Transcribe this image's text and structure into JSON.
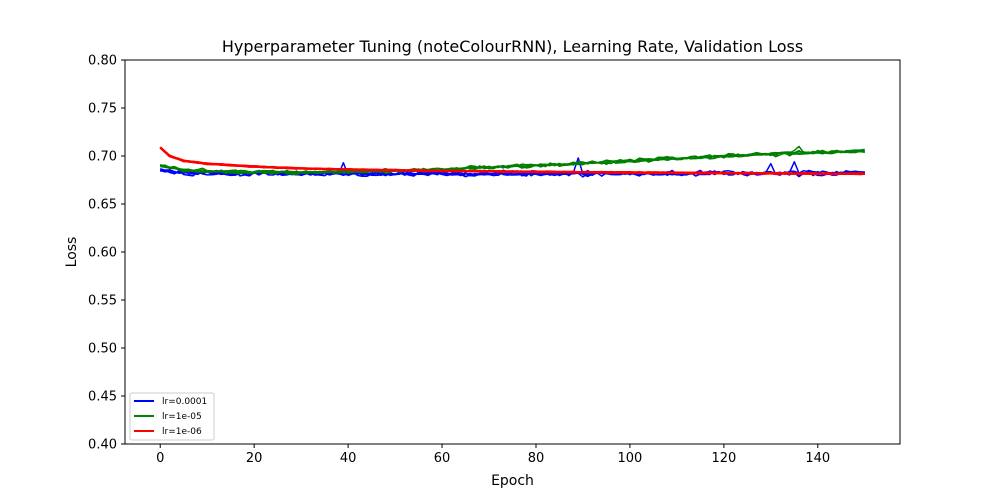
{
  "chart_data": {
    "type": "line",
    "title": "Hyperparameter Tuning (noteColourRNN), Learning Rate, Validation Loss",
    "xlabel": "Epoch",
    "ylabel": "Loss",
    "xlim": [
      -7.5,
      157.5
    ],
    "ylim": [
      0.4,
      0.8
    ],
    "xticks": [
      0,
      20,
      40,
      60,
      80,
      100,
      120,
      140
    ],
    "xtick_labels": [
      "0",
      "20",
      "40",
      "60",
      "80",
      "100",
      "120",
      "140"
    ],
    "yticks": [
      0.4,
      0.45,
      0.5,
      0.55,
      0.6,
      0.65,
      0.7,
      0.75,
      0.8
    ],
    "ytick_labels": [
      "0.40",
      "0.45",
      "0.50",
      "0.55",
      "0.60",
      "0.65",
      "0.70",
      "0.75",
      "0.80"
    ],
    "grid": false,
    "legend_position": "lower-left",
    "runs_per_series": 5,
    "epochs": 150,
    "series": [
      {
        "name": "lr=0.0001",
        "color": "#0000ff",
        "trend": [
          [
            0,
            0.684
          ],
          [
            5,
            0.682
          ],
          [
            20,
            0.6815
          ],
          [
            60,
            0.681
          ],
          [
            100,
            0.6815
          ],
          [
            150,
            0.682
          ]
        ],
        "noise": 0.0025,
        "spikes": [
          [
            39,
            0.693
          ],
          [
            89,
            0.698
          ],
          [
            135,
            0.694
          ],
          [
            130,
            0.692
          ]
        ]
      },
      {
        "name": "lr=1e-05",
        "color": "#008000",
        "trend": [
          [
            0,
            0.69
          ],
          [
            5,
            0.685
          ],
          [
            15,
            0.6835
          ],
          [
            30,
            0.683
          ],
          [
            45,
            0.684
          ],
          [
            60,
            0.686
          ],
          [
            75,
            0.689
          ],
          [
            90,
            0.692
          ],
          [
            105,
            0.696
          ],
          [
            120,
            0.7
          ],
          [
            135,
            0.703
          ],
          [
            150,
            0.705
          ]
        ],
        "noise": 0.0018,
        "spikes": [
          [
            136,
            0.71
          ]
        ]
      },
      {
        "name": "lr=1e-06",
        "color": "#ff0000",
        "trend": [
          [
            0,
            0.709
          ],
          [
            2,
            0.7
          ],
          [
            5,
            0.695
          ],
          [
            10,
            0.692
          ],
          [
            20,
            0.689
          ],
          [
            30,
            0.687
          ],
          [
            45,
            0.6855
          ],
          [
            60,
            0.6845
          ],
          [
            80,
            0.6835
          ],
          [
            100,
            0.6828
          ],
          [
            120,
            0.6822
          ],
          [
            150,
            0.6815
          ]
        ],
        "noise": 0.0004,
        "spikes": []
      }
    ]
  }
}
